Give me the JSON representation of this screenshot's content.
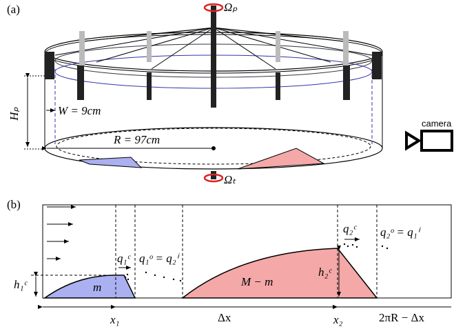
{
  "panel_a": {
    "label": "(a)",
    "omega_p": "Ωₚ",
    "omega_t": "Ωₜ",
    "height": "Hₚ",
    "width": "W = 9cm",
    "radius": "R = 97cm",
    "camera": "camera"
  },
  "panel_b": {
    "label": "(b)",
    "mass_1": "m",
    "mass_2": "M − m",
    "h1": "h₁ᶜ",
    "h2": "h₂ᶜ",
    "q1c": "q₁ᶜ",
    "q1o": "q₁ᵒ = q₂ⁱ",
    "q2c": "q₂ᶜ",
    "q2o": "q₂ᵒ = q₁ⁱ",
    "x1": "x₁",
    "dx": "Δx",
    "x2": "x₂",
    "rest": "2πR − Δx"
  }
}
